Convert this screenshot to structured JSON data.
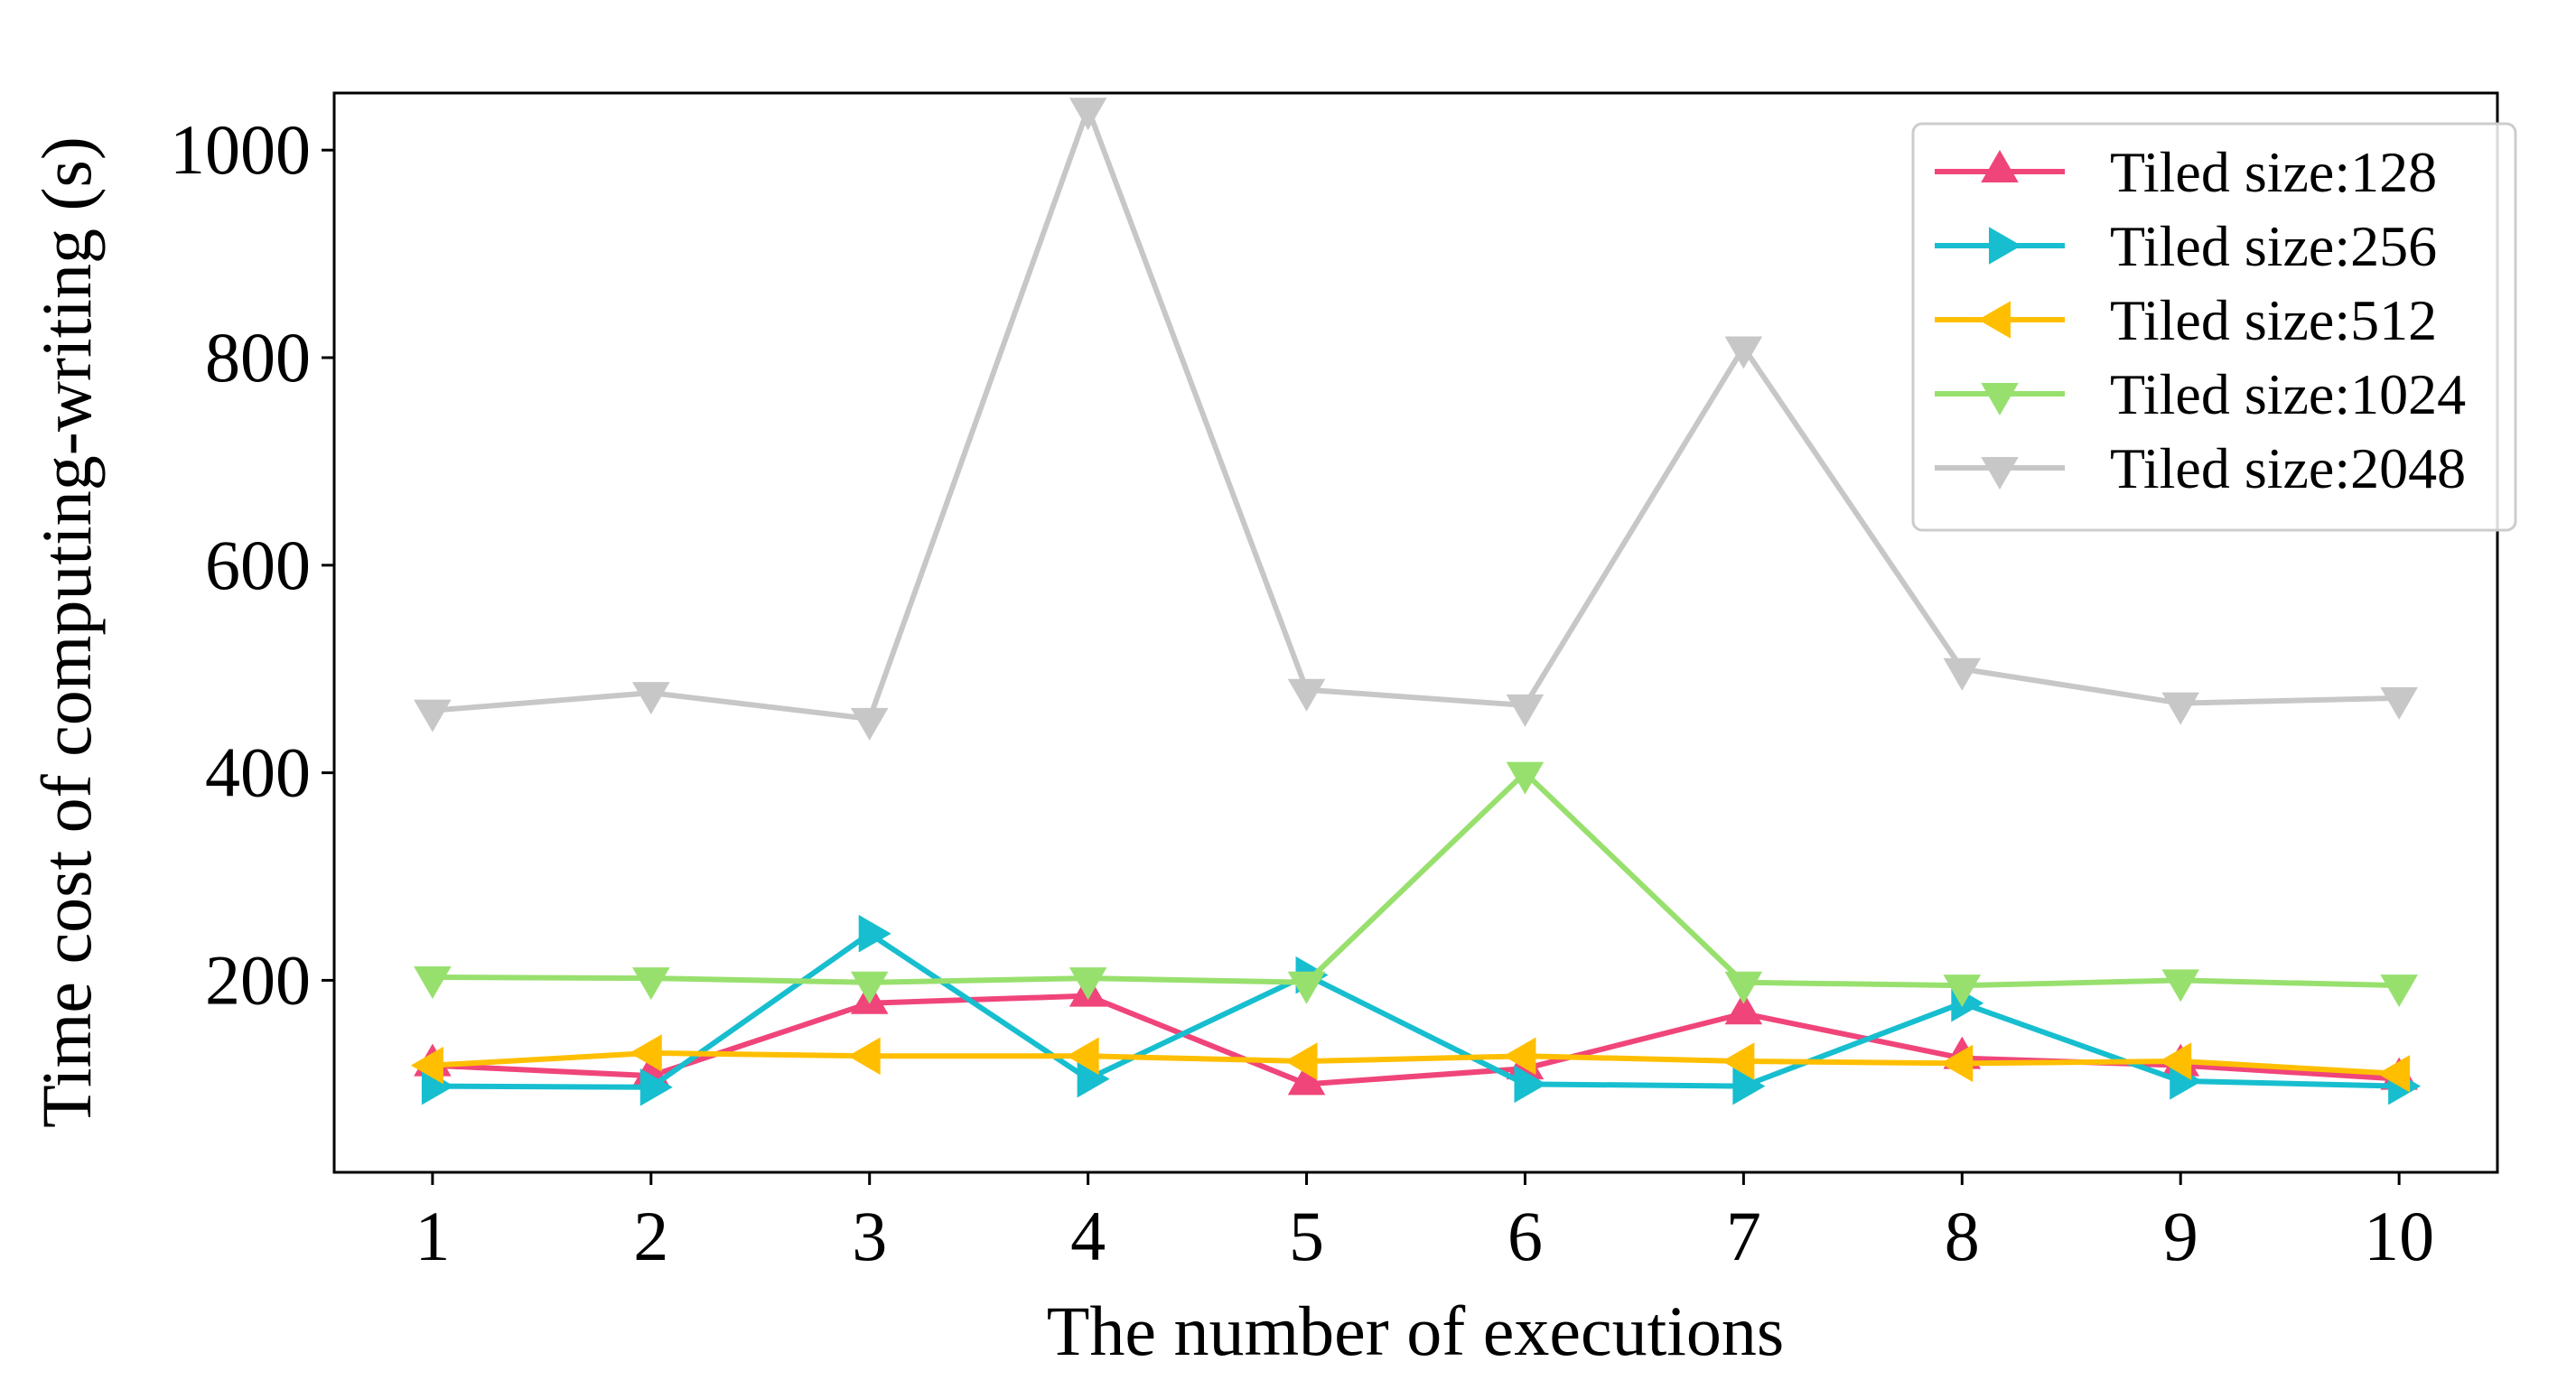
{
  "chart_data": {
    "type": "line",
    "title": "",
    "xlabel": "The number of executions",
    "ylabel": "Time cost of computing-writing (s)",
    "x": [
      1,
      2,
      3,
      4,
      5,
      6,
      7,
      8,
      9,
      10
    ],
    "xticks": [
      "1",
      "2",
      "3",
      "4",
      "5",
      "6",
      "7",
      "8",
      "9",
      "10"
    ],
    "yticks": [
      200,
      400,
      600,
      800,
      1000
    ],
    "xlim": [
      0.55,
      10.45
    ],
    "ylim": [
      15,
      1055
    ],
    "legend_position": "top-right",
    "series": [
      {
        "name": "Tiled size:128",
        "marker": "triangle-up",
        "color": "#f0457a",
        "values": [
          118,
          108,
          178,
          185,
          100,
          115,
          168,
          125,
          118,
          105
        ]
      },
      {
        "name": "Tiled size:256",
        "marker": "triangle-right",
        "color": "#17becf",
        "values": [
          98,
          97,
          245,
          105,
          205,
          100,
          98,
          178,
          103,
          98
        ]
      },
      {
        "name": "Tiled size:512",
        "marker": "triangle-left",
        "color": "#ffbf00",
        "values": [
          118,
          130,
          127,
          127,
          122,
          127,
          122,
          120,
          122,
          110
        ]
      },
      {
        "name": "Tiled size:1024",
        "marker": "triangle-down",
        "color": "#98e06e",
        "values": [
          203,
          202,
          198,
          202,
          198,
          400,
          198,
          195,
          200,
          195
        ]
      },
      {
        "name": "Tiled size:2048",
        "marker": "triangle-down",
        "color": "#c7c7c7",
        "values": [
          460,
          477,
          452,
          1040,
          480,
          465,
          810,
          500,
          467,
          472
        ]
      }
    ]
  }
}
